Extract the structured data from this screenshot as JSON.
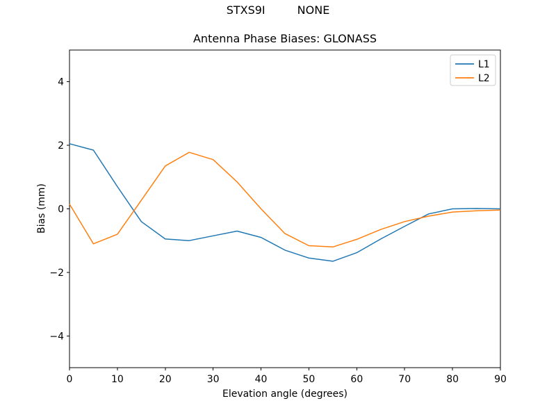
{
  "figure": {
    "suptitle_left": "STXS9I",
    "suptitle_right": "NONE",
    "background_color": "#ffffff",
    "axes_edge_color": "#000000",
    "legend_border_color": "#cccccc"
  },
  "chart_data": {
    "type": "line",
    "title": "Antenna Phase Biases: GLONASS",
    "xlabel": "Elevation angle (degrees)",
    "ylabel": "Bias (mm)",
    "xlim": [
      0,
      90
    ],
    "ylim": [
      -5,
      5
    ],
    "xticks": [
      0,
      10,
      20,
      30,
      40,
      50,
      60,
      70,
      80,
      90
    ],
    "yticks": [
      -4,
      -2,
      0,
      2,
      4
    ],
    "grid": false,
    "legend_position": "upper right",
    "x": [
      0,
      5,
      10,
      15,
      20,
      25,
      30,
      35,
      40,
      45,
      50,
      55,
      60,
      65,
      70,
      75,
      80,
      85,
      90
    ],
    "series": [
      {
        "name": "L1",
        "color": "#1f77b4",
        "values": [
          2.05,
          1.85,
          0.7,
          -0.4,
          -0.95,
          -1.0,
          -0.85,
          -0.7,
          -0.9,
          -1.3,
          -1.55,
          -1.65,
          -1.38,
          -0.95,
          -0.55,
          -0.16,
          0.0,
          0.01,
          0.0
        ]
      },
      {
        "name": "L2",
        "color": "#ff7f0e",
        "values": [
          0.15,
          -1.1,
          -0.8,
          0.27,
          1.35,
          1.78,
          1.55,
          0.85,
          0.0,
          -0.78,
          -1.16,
          -1.2,
          -0.96,
          -0.65,
          -0.4,
          -0.23,
          -0.1,
          -0.06,
          -0.04
        ]
      }
    ]
  }
}
